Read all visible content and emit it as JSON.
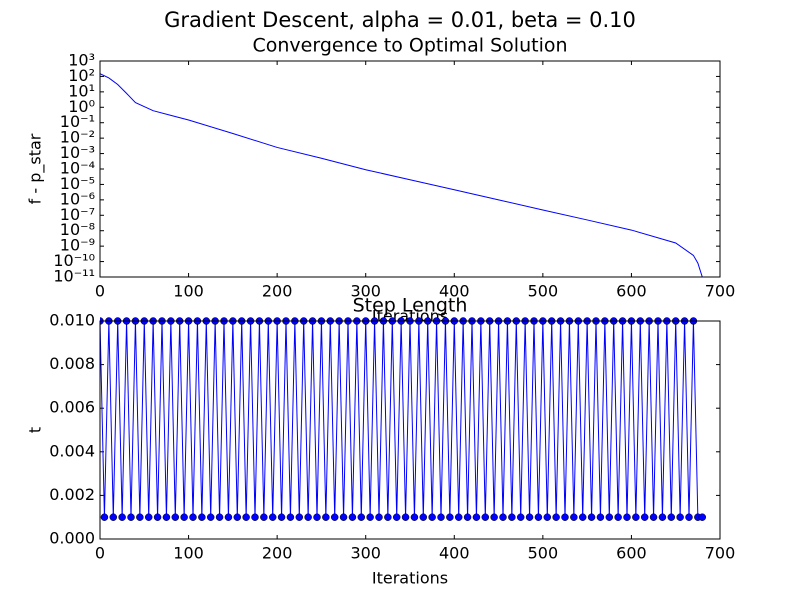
{
  "title": "Gradient Descent, alpha = 0.01, beta = 0.10",
  "chart_data": [
    {
      "type": "line",
      "title": "Convergence to Optimal Solution",
      "xlabel": "Iterations",
      "ylabel": "f - p_star",
      "log_y": true,
      "color": "#0000ff",
      "x": [
        0,
        10,
        20,
        30,
        40,
        60,
        80,
        100,
        150,
        200,
        250,
        300,
        350,
        400,
        450,
        500,
        550,
        600,
        650,
        670,
        675,
        680
      ],
      "values": [
        150,
        80,
        30,
        8,
        2,
        0.6,
        0.3,
        0.15,
        0.02,
        0.0025,
        0.0005,
        9e-05,
        2e-05,
        4.5e-06,
        1e-06,
        2.2e-07,
        5e-08,
        1.1e-08,
        1.6e-09,
        2.5e-10,
        8e-11,
        1e-11
      ],
      "xlim": [
        0,
        700
      ],
      "xticks": [
        0,
        100,
        200,
        300,
        400,
        500,
        600,
        700
      ],
      "ylim": [
        1e-11,
        1000
      ],
      "yticks": [
        {
          "value": 1e-11,
          "label": "10⁻¹¹"
        },
        {
          "value": 1e-10,
          "label": "10⁻¹⁰"
        },
        {
          "value": 1e-09,
          "label": "10⁻⁹"
        },
        {
          "value": 1e-08,
          "label": "10⁻⁸"
        },
        {
          "value": 1e-07,
          "label": "10⁻⁷"
        },
        {
          "value": 1e-06,
          "label": "10⁻⁶"
        },
        {
          "value": 1e-05,
          "label": "10⁻⁵"
        },
        {
          "value": 0.0001,
          "label": "10⁻⁴"
        },
        {
          "value": 0.001,
          "label": "10⁻³"
        },
        {
          "value": 0.01,
          "label": "10⁻²"
        },
        {
          "value": 0.1,
          "label": "10⁻¹"
        },
        {
          "value": 1,
          "label": "10⁰"
        },
        {
          "value": 10,
          "label": "10¹"
        },
        {
          "value": 100,
          "label": "10²"
        },
        {
          "value": 1000,
          "label": "10³"
        }
      ]
    },
    {
      "type": "line",
      "title": "Step Length",
      "xlabel": "Iterations",
      "ylabel": "t",
      "markers": true,
      "color": "#0000ff",
      "x": [
        0,
        5,
        10,
        15,
        20,
        25,
        30,
        35,
        40,
        45,
        50,
        55,
        60,
        65,
        70,
        75,
        80,
        85,
        90,
        95,
        100,
        105,
        110,
        115,
        120,
        125,
        130,
        135,
        140,
        145,
        150,
        155,
        160,
        165,
        170,
        175,
        180,
        185,
        190,
        195,
        200,
        205,
        210,
        215,
        220,
        225,
        230,
        235,
        240,
        245,
        250,
        255,
        260,
        265,
        270,
        275,
        280,
        285,
        290,
        295,
        300,
        305,
        310,
        315,
        320,
        325,
        330,
        335,
        340,
        345,
        350,
        355,
        360,
        365,
        370,
        375,
        380,
        385,
        390,
        395,
        400,
        405,
        410,
        415,
        420,
        425,
        430,
        435,
        440,
        445,
        450,
        455,
        460,
        465,
        470,
        475,
        480,
        485,
        490,
        495,
        500,
        505,
        510,
        515,
        520,
        525,
        530,
        535,
        540,
        545,
        550,
        555,
        560,
        565,
        570,
        575,
        580,
        585,
        590,
        595,
        600,
        605,
        610,
        615,
        620,
        625,
        630,
        635,
        640,
        645,
        650,
        655,
        660,
        665,
        670,
        675,
        680
      ],
      "values": [
        0.01,
        0.001,
        0.01,
        0.001,
        0.01,
        0.001,
        0.01,
        0.001,
        0.01,
        0.001,
        0.01,
        0.001,
        0.01,
        0.001,
        0.01,
        0.001,
        0.01,
        0.001,
        0.01,
        0.001,
        0.01,
        0.001,
        0.01,
        0.001,
        0.01,
        0.001,
        0.01,
        0.001,
        0.01,
        0.001,
        0.01,
        0.001,
        0.01,
        0.001,
        0.01,
        0.001,
        0.01,
        0.001,
        0.01,
        0.001,
        0.01,
        0.001,
        0.01,
        0.001,
        0.01,
        0.001,
        0.01,
        0.001,
        0.01,
        0.001,
        0.01,
        0.001,
        0.01,
        0.001,
        0.01,
        0.001,
        0.01,
        0.001,
        0.01,
        0.001,
        0.01,
        0.001,
        0.01,
        0.001,
        0.01,
        0.001,
        0.01,
        0.001,
        0.01,
        0.001,
        0.01,
        0.001,
        0.01,
        0.001,
        0.01,
        0.001,
        0.01,
        0.001,
        0.01,
        0.001,
        0.01,
        0.001,
        0.01,
        0.001,
        0.01,
        0.001,
        0.01,
        0.001,
        0.01,
        0.001,
        0.01,
        0.001,
        0.01,
        0.001,
        0.01,
        0.001,
        0.01,
        0.001,
        0.01,
        0.001,
        0.01,
        0.001,
        0.01,
        0.001,
        0.01,
        0.001,
        0.01,
        0.001,
        0.01,
        0.001,
        0.01,
        0.001,
        0.01,
        0.001,
        0.01,
        0.001,
        0.01,
        0.001,
        0.01,
        0.001,
        0.01,
        0.001,
        0.01,
        0.001,
        0.01,
        0.001,
        0.01,
        0.001,
        0.01,
        0.001,
        0.01,
        0.001,
        0.01,
        0.001,
        0.01,
        0.001,
        0.001
      ],
      "xlim": [
        0,
        700
      ],
      "xticks": [
        0,
        100,
        200,
        300,
        400,
        500,
        600,
        700
      ],
      "ylim": [
        0,
        0.01
      ],
      "yticks": [
        {
          "value": 0,
          "label": "0.000"
        },
        {
          "value": 0.002,
          "label": "0.002"
        },
        {
          "value": 0.004,
          "label": "0.004"
        },
        {
          "value": 0.006,
          "label": "0.006"
        },
        {
          "value": 0.008,
          "label": "0.008"
        },
        {
          "value": 0.01,
          "label": "0.010"
        }
      ]
    }
  ]
}
